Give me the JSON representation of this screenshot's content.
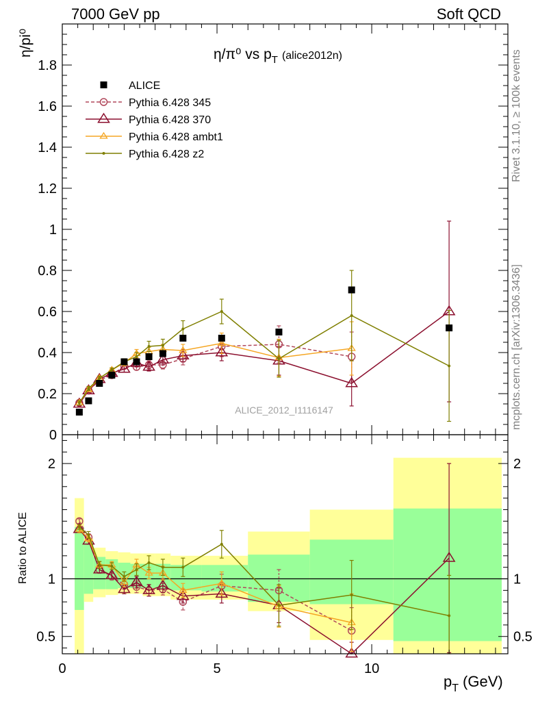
{
  "header": {
    "left": "7000 GeV pp",
    "right": "Soft QCD"
  },
  "side_labels": {
    "rivet": "Rivet 3.1.10, ≥ 100k events",
    "mcplots": "mcplots.cern.ch [arXiv:1306.3436]"
  },
  "chart_data": [
    {
      "type": "scatter",
      "panel": "main",
      "title_main": "η/π⁰ vs p",
      "title_sub": "T",
      "title_tag": "(alice2012n)",
      "ylabel": "η/pi⁰",
      "watermark": "ALICE_2012_I1116147",
      "xlim": [
        0,
        14.4
      ],
      "ylim": [
        0,
        2.0
      ],
      "yticks": [
        0,
        0.2,
        0.4,
        0.6,
        0.8,
        1,
        1.2,
        1.4,
        1.6,
        1.8
      ],
      "ytick_labels": [
        "0",
        "0.2",
        "0.4",
        "0.6",
        "0.8",
        "1",
        "1.2",
        "1.4",
        "1.6",
        "1.8"
      ],
      "legend_position": "top-left",
      "data": {
        "name": "ALICE",
        "color": "#000000",
        "x": [
          0.55,
          0.85,
          1.2,
          1.6,
          2.0,
          2.4,
          2.8,
          3.25,
          3.9,
          5.15,
          7.0,
          9.35,
          12.5
        ],
        "y": [
          0.11,
          0.165,
          0.25,
          0.29,
          0.355,
          0.355,
          0.38,
          0.395,
          0.47,
          0.47,
          0.5,
          0.705,
          0.52
        ]
      },
      "series": [
        {
          "name": "Pythia 6.428 345",
          "color": "#b0475a",
          "marker": "circle",
          "dashed": true,
          "x": [
            0.55,
            0.85,
            1.2,
            1.6,
            2.0,
            2.4,
            2.8,
            3.25,
            3.9,
            5.15,
            7.0,
            9.35
          ],
          "y": [
            0.155,
            0.215,
            0.265,
            0.29,
            0.335,
            0.33,
            0.34,
            0.34,
            0.37,
            0.43,
            0.44,
            0.38
          ],
          "err": [
            0.01,
            0.01,
            0.01,
            0.01,
            0.015,
            0.015,
            0.02,
            0.02,
            0.03,
            0.05,
            0.09,
            0.12
          ]
        },
        {
          "name": "Pythia 6.428 370",
          "color": "#8b0f2e",
          "marker": "triangle-open",
          "dashed": false,
          "x": [
            0.55,
            0.85,
            1.2,
            1.6,
            2.0,
            2.4,
            2.8,
            3.25,
            3.9,
            5.15,
            7.0,
            9.35,
            12.5
          ],
          "y": [
            0.15,
            0.215,
            0.27,
            0.3,
            0.32,
            0.35,
            0.33,
            0.365,
            0.385,
            0.4,
            0.36,
            0.25,
            0.6
          ],
          "err": [
            0.01,
            0.01,
            0.01,
            0.01,
            0.015,
            0.02,
            0.02,
            0.025,
            0.03,
            0.04,
            0.07,
            0.11,
            0.44
          ]
        },
        {
          "name": "Pythia 6.428 ambt1",
          "color": "#f5a623",
          "marker": "triangle-small",
          "dashed": false,
          "x": [
            0.55,
            0.85,
            1.2,
            1.6,
            2.0,
            2.4,
            2.8,
            3.25,
            3.9,
            5.15,
            7.0,
            9.35
          ],
          "y": [
            0.155,
            0.22,
            0.275,
            0.315,
            0.35,
            0.395,
            0.405,
            0.415,
            0.41,
            0.445,
            0.375,
            0.42
          ],
          "err": [
            0.01,
            0.01,
            0.01,
            0.01,
            0.015,
            0.02,
            0.02,
            0.025,
            0.03,
            0.05,
            0.09,
            0.13
          ]
        },
        {
          "name": "Pythia 6.428 z2",
          "color": "#7f7f00",
          "marker": "dot",
          "dashed": false,
          "x": [
            0.55,
            0.85,
            1.2,
            1.6,
            2.0,
            2.4,
            2.8,
            3.25,
            3.9,
            5.15,
            7.0,
            9.35,
            12.5
          ],
          "y": [
            0.155,
            0.225,
            0.275,
            0.315,
            0.355,
            0.38,
            0.43,
            0.435,
            0.515,
            0.6,
            0.37,
            0.58,
            0.335
          ],
          "err": [
            0.01,
            0.01,
            0.01,
            0.01,
            0.015,
            0.02,
            0.025,
            0.03,
            0.04,
            0.06,
            0.09,
            0.22,
            0.27
          ]
        }
      ]
    },
    {
      "type": "scatter",
      "panel": "ratio",
      "ylabel": "Ratio to ALICE",
      "xlabel_main": "p",
      "xlabel_sub": "T",
      "xlabel_unit": "(GeV)",
      "xlim": [
        0,
        14.4
      ],
      "ylim": [
        0.35,
        2.25
      ],
      "xticks": [
        0,
        5,
        10
      ],
      "xtick_labels": [
        "0",
        "5",
        "10"
      ],
      "yticks": [
        0.5,
        1,
        2
      ],
      "ytick_labels": [
        "0.5",
        "1",
        "2"
      ],
      "bands": [
        {
          "x": [
            0.4,
            0.7
          ],
          "yellow": [
            0.35,
            1.7
          ],
          "green": [
            0.73,
            1.45
          ]
        },
        {
          "x": [
            0.7,
            1.0
          ],
          "yellow": [
            0.8,
            1.35
          ],
          "green": [
            0.87,
            1.32
          ]
        },
        {
          "x": [
            1.0,
            1.4
          ],
          "yellow": [
            0.84,
            1.27
          ],
          "green": [
            0.91,
            1.19
          ]
        },
        {
          "x": [
            1.4,
            1.8
          ],
          "yellow": [
            0.86,
            1.24
          ],
          "green": [
            0.91,
            1.17
          ]
        },
        {
          "x": [
            1.8,
            2.2
          ],
          "yellow": [
            0.87,
            1.23
          ],
          "green": [
            0.92,
            1.14
          ]
        },
        {
          "x": [
            2.2,
            2.6
          ],
          "yellow": [
            0.87,
            1.22
          ],
          "green": [
            0.92,
            1.13
          ]
        },
        {
          "x": [
            2.6,
            3.0
          ],
          "yellow": [
            0.85,
            1.22
          ],
          "green": [
            0.92,
            1.13
          ]
        },
        {
          "x": [
            3.0,
            3.5
          ],
          "yellow": [
            0.85,
            1.22
          ],
          "green": [
            0.91,
            1.13
          ]
        },
        {
          "x": [
            3.5,
            4.5
          ],
          "yellow": [
            0.82,
            1.2
          ],
          "green": [
            0.9,
            1.12
          ]
        },
        {
          "x": [
            4.5,
            6.0
          ],
          "yellow": [
            0.82,
            1.2
          ],
          "green": [
            0.89,
            1.12
          ]
        },
        {
          "x": [
            6.0,
            8.0
          ],
          "yellow": [
            0.72,
            1.41
          ],
          "green": [
            0.8,
            1.21
          ]
        },
        {
          "x": [
            8.0,
            10.7
          ],
          "yellow": [
            0.47,
            1.6
          ],
          "green": [
            0.78,
            1.34
          ]
        },
        {
          "x": [
            10.7,
            14.2
          ],
          "yellow": [
            0.35,
            2.05
          ],
          "green": [
            0.46,
            1.61
          ]
        }
      ],
      "series": [
        {
          "name": "Pythia 6.428 345",
          "color": "#b0475a",
          "marker": "circle",
          "dashed": true,
          "x": [
            0.55,
            0.85,
            1.2,
            1.6,
            2.0,
            2.4,
            2.8,
            3.25,
            3.9,
            5.15,
            7.0,
            9.35
          ],
          "y": [
            1.5,
            1.36,
            1.08,
            1.02,
            0.95,
            0.93,
            0.9,
            0.91,
            0.8,
            0.94,
            0.9,
            0.55
          ],
          "err": [
            0.02,
            0.03,
            0.03,
            0.03,
            0.04,
            0.05,
            0.05,
            0.05,
            0.07,
            0.1,
            0.18,
            0.2
          ]
        },
        {
          "name": "Pythia 6.428 370",
          "color": "#8b0f2e",
          "marker": "triangle-open",
          "dashed": false,
          "x": [
            0.55,
            0.85,
            1.2,
            1.6,
            2.0,
            2.4,
            2.8,
            3.25,
            3.9,
            5.15,
            7.0,
            9.35,
            12.5
          ],
          "y": [
            1.43,
            1.33,
            1.08,
            1.03,
            0.91,
            0.97,
            0.9,
            0.94,
            0.85,
            0.87,
            0.77,
            0.35,
            1.18
          ],
          "err": [
            0.03,
            0.03,
            0.03,
            0.03,
            0.04,
            0.05,
            0.05,
            0.06,
            0.06,
            0.08,
            0.15,
            0.1,
            0.82
          ]
        },
        {
          "name": "Pythia 6.428 ambt1",
          "color": "#f5a623",
          "marker": "triangle-small",
          "dashed": false,
          "x": [
            0.55,
            0.85,
            1.2,
            1.6,
            2.0,
            2.4,
            2.8,
            3.25,
            3.9,
            5.15,
            7.0,
            9.35
          ],
          "y": [
            1.43,
            1.35,
            1.12,
            1.12,
            0.97,
            1.12,
            1.05,
            1.05,
            0.9,
            0.96,
            0.76,
            0.62
          ],
          "err": [
            0.03,
            0.03,
            0.03,
            0.03,
            0.04,
            0.05,
            0.05,
            0.06,
            0.06,
            0.1,
            0.18,
            0.25
          ]
        },
        {
          "name": "Pythia 6.428 z2",
          "color": "#7f7f00",
          "marker": "dot",
          "dashed": false,
          "x": [
            0.55,
            0.85,
            1.2,
            1.6,
            2.0,
            2.4,
            2.8,
            3.25,
            3.9,
            5.15,
            7.0,
            9.35,
            12.5
          ],
          "y": [
            1.45,
            1.38,
            1.12,
            1.11,
            1.02,
            1.08,
            1.14,
            1.1,
            1.1,
            1.3,
            0.77,
            0.86,
            0.68
          ],
          "err": [
            0.02,
            0.03,
            0.03,
            0.03,
            0.04,
            0.05,
            0.06,
            0.07,
            0.08,
            0.12,
            0.18,
            0.3,
            0.35
          ]
        }
      ]
    }
  ]
}
